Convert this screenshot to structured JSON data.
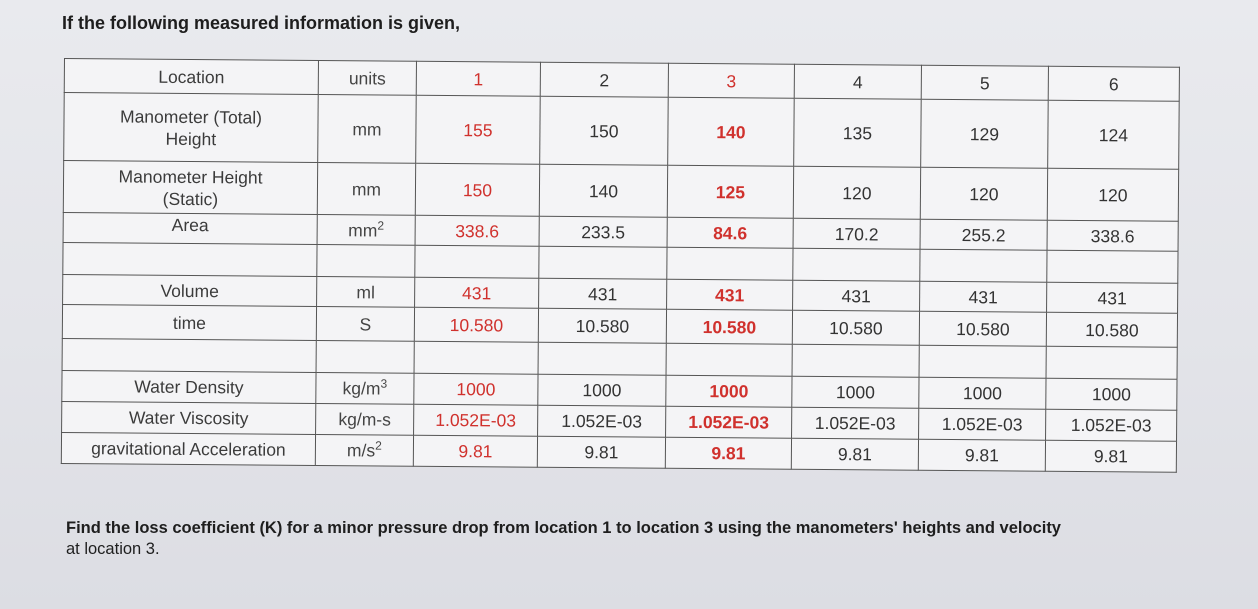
{
  "intro": "If the following measured information is given,",
  "table": {
    "header": {
      "location": "Location",
      "units": "units",
      "columns": [
        "1",
        "2",
        "3",
        "4",
        "5",
        "6"
      ]
    },
    "rows": [
      {
        "label": "Manometer (Total) Height",
        "unit": "mm",
        "values": [
          "155",
          "150",
          "140",
          "135",
          "129",
          "124"
        ]
      },
      {
        "label": "Manometer Height (Static)",
        "unit": "mm",
        "values": [
          "150",
          "140",
          "125",
          "120",
          "120",
          "120"
        ]
      },
      {
        "label": "Area",
        "unit_base": "mm",
        "unit_sup": "2",
        "values": [
          "338.6",
          "233.5",
          "84.6",
          "170.2",
          "255.2",
          "338.6"
        ]
      },
      {
        "label": "Volume",
        "unit": "ml",
        "values": [
          "431",
          "431",
          "431",
          "431",
          "431",
          "431"
        ]
      },
      {
        "label": "time",
        "unit": "S",
        "values": [
          "10.580",
          "10.580",
          "10.580",
          "10.580",
          "10.580",
          "10.580"
        ]
      },
      {
        "label": "Water Density",
        "unit_base": "kg/m",
        "unit_sup": "3",
        "values": [
          "1000",
          "1000",
          "1000",
          "1000",
          "1000",
          "1000"
        ]
      },
      {
        "label": "Water Viscosity",
        "unit": "kg/m-s",
        "values": [
          "1.052E-03",
          "1.052E-03",
          "1.052E-03",
          "1.052E-03",
          "1.052E-03",
          "1.052E-03"
        ]
      },
      {
        "label": "gravitational Acceleration",
        "unit_base": "m/s",
        "unit_sup": "2",
        "values": [
          "9.81",
          "9.81",
          "9.81",
          "9.81",
          "9.81",
          "9.81"
        ]
      }
    ],
    "highlight_colors": {
      "red": "#d0312d"
    }
  },
  "question": {
    "main": "Find the loss coefficient (K) for a minor pressure drop from location 1 to location 3 using the manometers' heights and velocity",
    "tail": "at location 3."
  }
}
